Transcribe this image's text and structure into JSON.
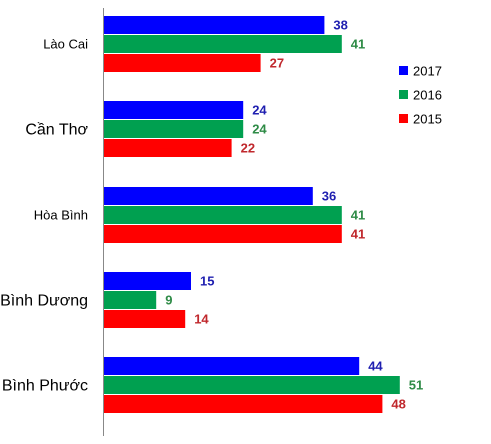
{
  "chart_data": {
    "type": "bar",
    "orientation": "horizontal",
    "categories": [
      "Lào Cai",
      "Cần Thơ",
      "Hòa Bình",
      "Bình Dương",
      "Bình Phước"
    ],
    "series": [
      {
        "name": "2017",
        "color": "#0000FF",
        "values": [
          38,
          24,
          36,
          15,
          44
        ]
      },
      {
        "name": "2016",
        "color": "#00A050",
        "values": [
          41,
          24,
          41,
          9,
          51
        ]
      },
      {
        "name": "2015",
        "color": "#FF0000",
        "values": [
          27,
          22,
          41,
          14,
          48
        ]
      }
    ],
    "value_label_colors": {
      "2017": "#1F1FB0",
      "2016": "#2E8B46",
      "2015": "#C0282D"
    },
    "xlim": [
      0,
      60
    ],
    "grid": false,
    "legend_position": "right",
    "title": "",
    "xlabel": "",
    "ylabel": ""
  }
}
